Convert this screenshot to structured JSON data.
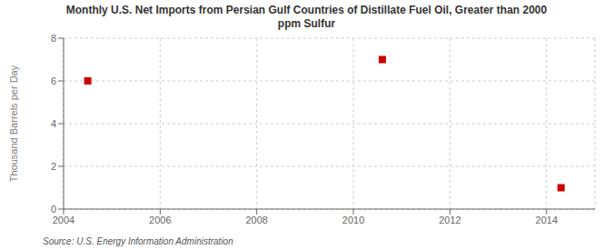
{
  "chart_data": {
    "type": "scatter",
    "title": "Monthly U.S. Net Imports from Persian Gulf Countries of Distillate Fuel Oil, Greater than 2000\nppm Sulfur",
    "ylabel": "Thousand Barrels per Day",
    "annotations": [
      "Source: U.S. Energy Information Administration"
    ],
    "x": [
      2004.5,
      2010.6,
      2014.3
    ],
    "values": [
      6.0,
      7.0,
      1.0
    ],
    "color": "#cc0000",
    "marker": "square",
    "xlim": [
      2004,
      2015
    ],
    "xticks": [
      2004,
      2006,
      2008,
      2010,
      2012,
      2014
    ],
    "ylim": [
      0,
      8
    ],
    "yticks": [
      0,
      2,
      4,
      6,
      8
    ],
    "grid": true
  }
}
